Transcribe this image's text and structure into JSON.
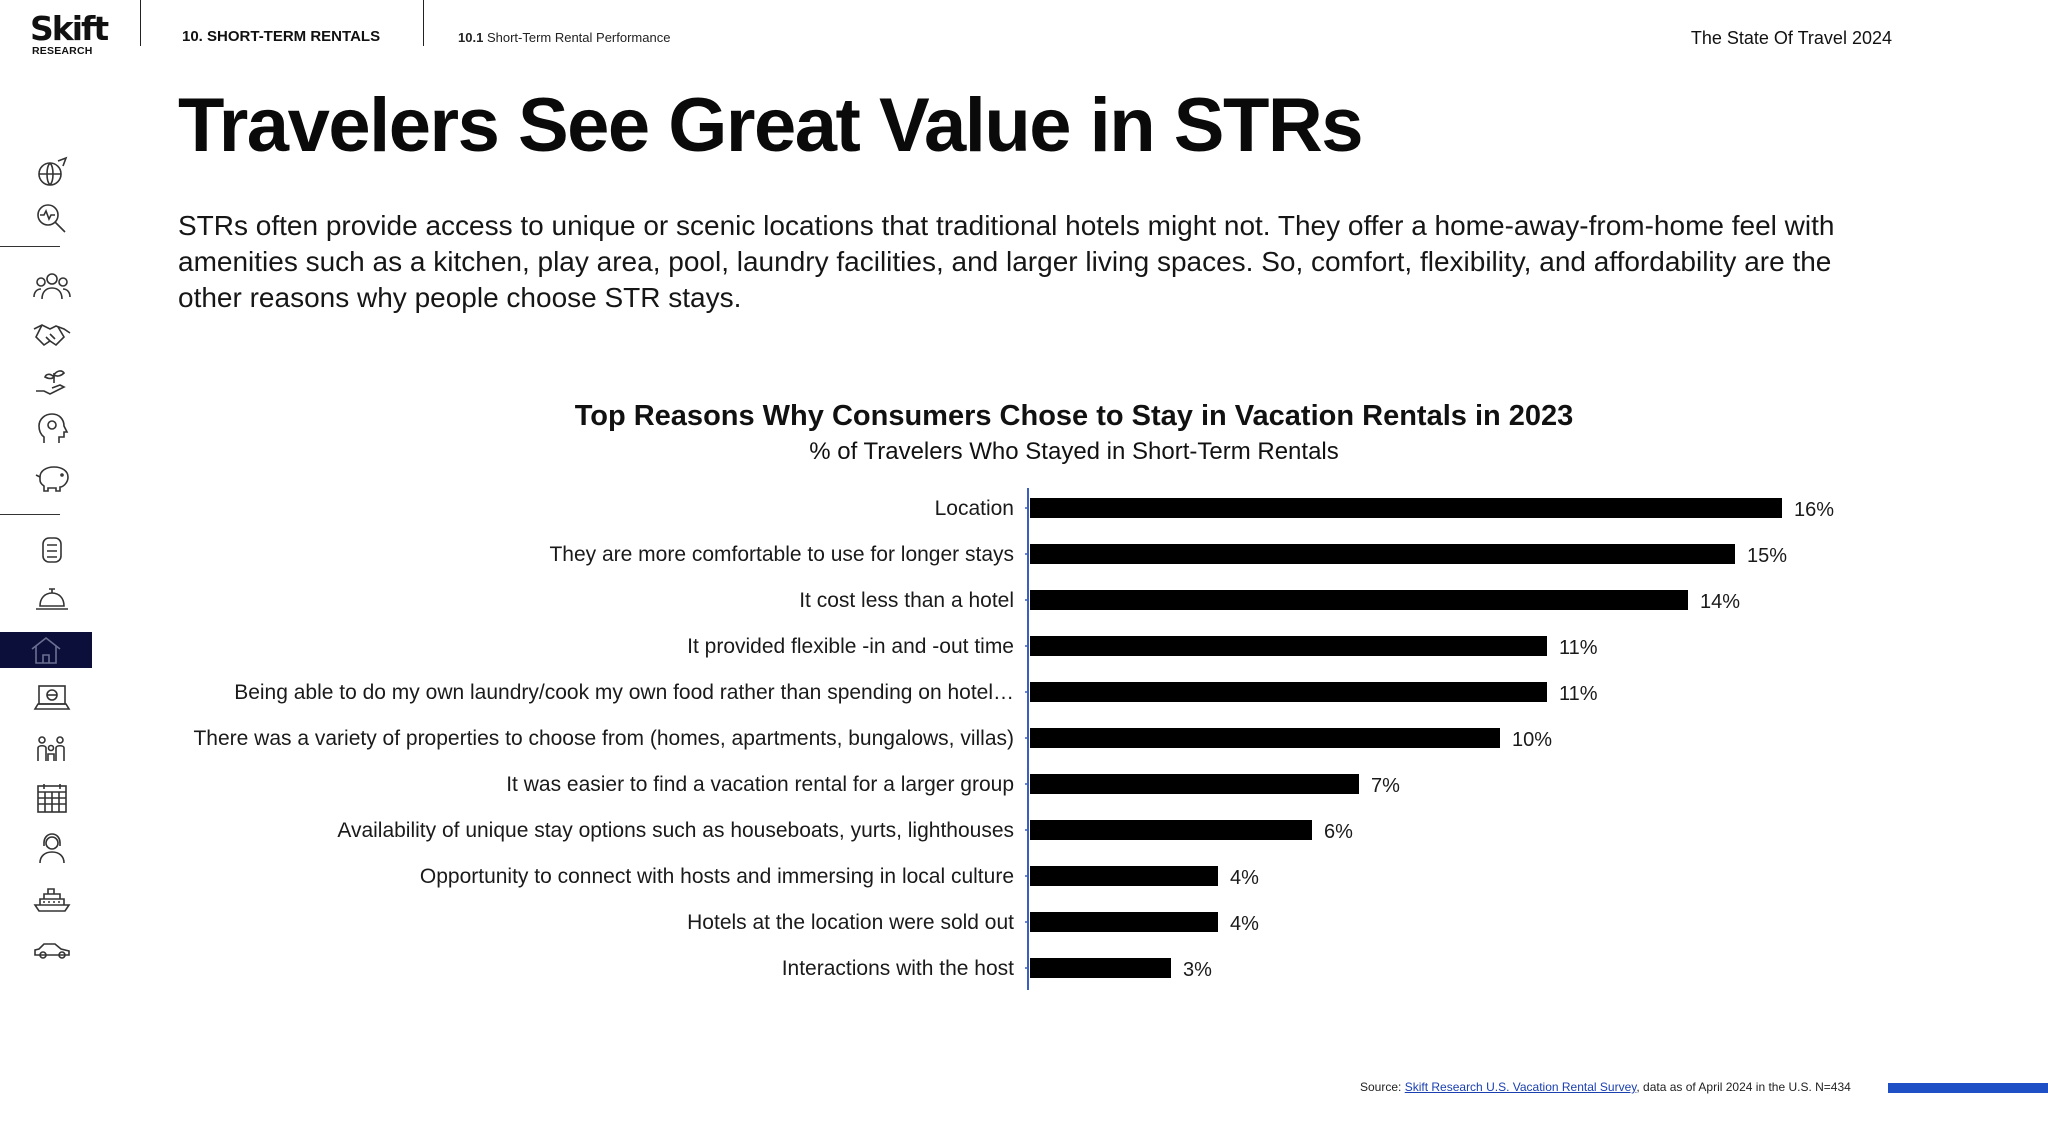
{
  "header": {
    "logo_text": "Skift",
    "logo_sub": "RESEARCH",
    "section": "10. SHORT-TERM RENTALS",
    "subsection_num": "10.1",
    "subsection": "Short-Term Rental Performance",
    "report": "The State Of Travel 2024"
  },
  "page": {
    "title": "Travelers See Great Value in STRs",
    "intro": "STRs often provide access to unique or scenic locations that traditional hotels might not. They offer a home-away-from-home feel with amenities such as a kitchen, play area, pool, laundry facilities, and larger living spaces. So, comfort, flexibility, and affordability are the other reasons why people choose STR stays."
  },
  "sidebar": {
    "icons": [
      "globe-plane-icon",
      "magnify-pulse-icon",
      "people-group-icon",
      "handshake-icon",
      "hand-plant-icon",
      "head-gears-icon",
      "piggy-bank-icon",
      "luggage-icon",
      "service-bell-icon",
      "house-icon",
      "laptop-globe-icon",
      "family-icon",
      "calendar-icon",
      "person-headset-icon",
      "cruise-ship-icon",
      "car-icon"
    ],
    "active": "house-icon"
  },
  "chart_data": {
    "type": "bar",
    "orientation": "horizontal",
    "title": "Top Reasons Why Consumers Chose to Stay in Vacation Rentals in 2023",
    "subtitle": "% of Travelers Who Stayed in Short-Term Rentals",
    "categories": [
      "Location",
      "They are more comfortable to use for longer stays",
      "It cost less than a hotel",
      "It provided flexible -in and -out time",
      "Being able to do my own laundry/cook my own food rather than spending on hotel…",
      "There was a variety of properties to choose from (homes, apartments, bungalows, villas)",
      "It was easier to find a vacation rental for a larger group",
      "Availability of unique stay options such as houseboats, yurts, lighthouses",
      "Opportunity to connect with hosts and immersing in local culture",
      "Hotels at the location were sold out",
      "Interactions with the host"
    ],
    "values": [
      16,
      15,
      14,
      11,
      11,
      10,
      7,
      6,
      4,
      4,
      3
    ],
    "value_labels": [
      "16%",
      "15%",
      "14%",
      "11%",
      "11%",
      "10%",
      "7%",
      "6%",
      "4%",
      "4%",
      "3%"
    ],
    "bar_color": "#000000",
    "axis_color": "#3a5fbf",
    "grid": false
  },
  "footer": {
    "source_prefix": "Source:",
    "source_link": "Skift Research U.S. Vacation Rental Survey",
    "source_suffix": ", data as of April 2024 in the U.S. N=434"
  }
}
